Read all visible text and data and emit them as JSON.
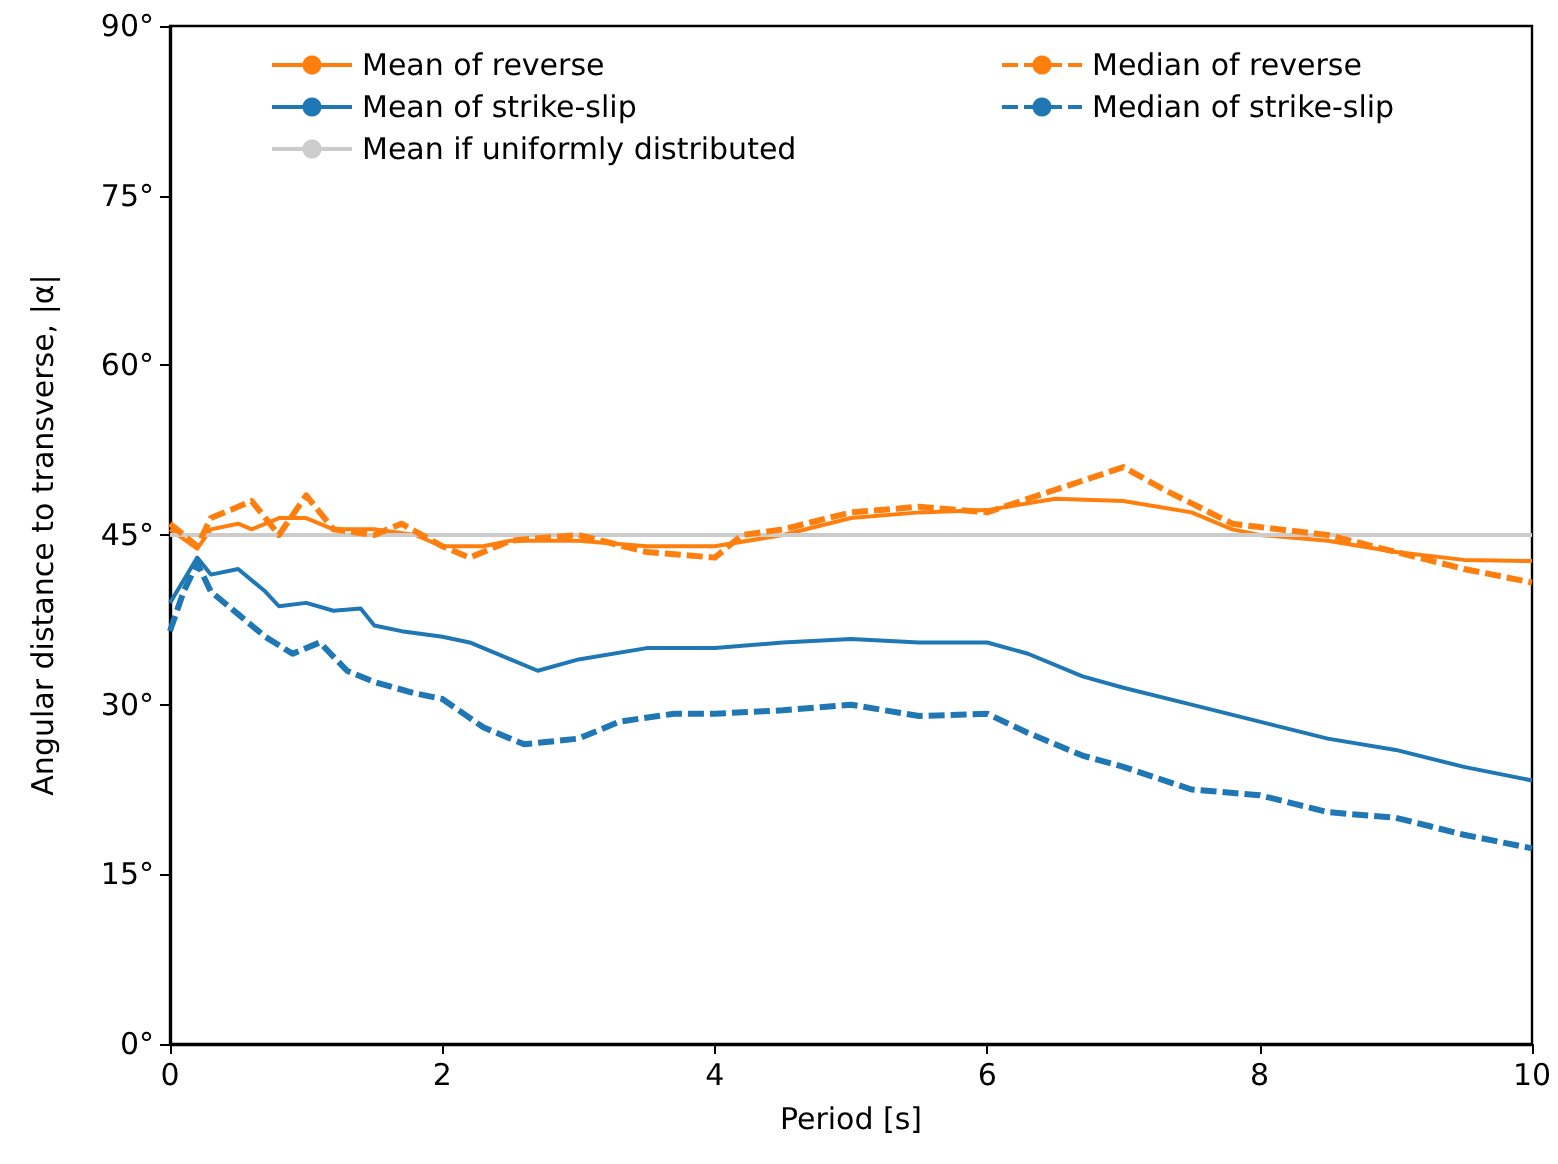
{
  "chart_data": {
    "type": "line",
    "xlabel": "Period [s]",
    "ylabel": "Angular distance to transverse, |α|",
    "xlim": [
      0,
      10
    ],
    "xticks": [
      0,
      2,
      4,
      6,
      8,
      10
    ],
    "ylim": [
      0,
      90
    ],
    "yticks": [
      {
        "value": 0,
        "label": "0°"
      },
      {
        "value": 15,
        "label": "15°"
      },
      {
        "value": 30,
        "label": "30°"
      },
      {
        "value": 45,
        "label": "45°"
      },
      {
        "value": 60,
        "label": "60°"
      },
      {
        "value": 75,
        "label": "75°"
      },
      {
        "value": 90,
        "label": "90°"
      }
    ],
    "grid": false,
    "legend": "top",
    "marker": "none",
    "series": [
      {
        "name": "Mean of reverse",
        "color": "#ff7f0e",
        "line_style": "solid",
        "x": [
          0,
          0.2,
          0.3,
          0.5,
          0.6,
          0.8,
          1.0,
          1.2,
          1.5,
          1.8,
          2.0,
          2.3,
          2.5,
          3.0,
          3.5,
          4.0,
          4.5,
          5.0,
          5.5,
          6.0,
          6.5,
          7.0,
          7.5,
          7.8,
          8.0,
          8.5,
          9.0,
          9.5,
          10
        ],
        "values": [
          45.5,
          43.8,
          45.5,
          46,
          45.5,
          46.5,
          46.5,
          45.5,
          45.5,
          45,
          44,
          44,
          44.5,
          44.5,
          44,
          44,
          45,
          46.5,
          47,
          47.2,
          48.2,
          48,
          47,
          45.5,
          45,
          44.5,
          43.5,
          42.8,
          42.7
        ]
      },
      {
        "name": "Mean of strike-slip",
        "color": "#1f77b4",
        "line_style": "solid",
        "x": [
          0,
          0.1,
          0.2,
          0.3,
          0.5,
          0.7,
          0.8,
          1.0,
          1.2,
          1.4,
          1.5,
          1.7,
          2.0,
          2.2,
          2.5,
          2.7,
          3.0,
          3.5,
          4.0,
          4.5,
          5.0,
          5.5,
          6.0,
          6.3,
          6.7,
          7.0,
          7.5,
          8.0,
          8.5,
          9.0,
          9.5,
          10
        ],
        "values": [
          39,
          41,
          43,
          41.5,
          42,
          40,
          38.7,
          39,
          38.3,
          38.5,
          37,
          36.5,
          36,
          35.5,
          34,
          33,
          34,
          35,
          35,
          35.5,
          35.8,
          35.5,
          35.5,
          34.5,
          32.5,
          31.5,
          30,
          28.5,
          27,
          26,
          24.5,
          23.3
        ]
      },
      {
        "name": "Mean if uniformly distributed",
        "color": "#cccccc",
        "line_style": "solid",
        "x": [
          0,
          10
        ],
        "values": [
          45,
          45
        ]
      },
      {
        "name": "Median of reverse",
        "color": "#ff7f0e",
        "line_style": "dashed",
        "x": [
          0,
          0.2,
          0.3,
          0.5,
          0.6,
          0.8,
          1.0,
          1.2,
          1.5,
          1.7,
          2.0,
          2.2,
          2.5,
          3.0,
          3.5,
          4.0,
          4.2,
          4.5,
          5.0,
          5.5,
          6.0,
          6.5,
          7.0,
          7.3,
          7.8,
          8.0,
          8.5,
          9.0,
          9.5,
          10
        ],
        "values": [
          46,
          44,
          46.5,
          47.5,
          48,
          45,
          48.5,
          45.5,
          45,
          46,
          44,
          43,
          44.5,
          45,
          43.5,
          43,
          45,
          45.5,
          47,
          47.5,
          47,
          49,
          51,
          49,
          46,
          45.7,
          45,
          43.5,
          42,
          40.8
        ]
      },
      {
        "name": "Median of strike-slip",
        "color": "#1f77b4",
        "line_style": "dashed",
        "x": [
          0,
          0.1,
          0.2,
          0.3,
          0.5,
          0.7,
          0.9,
          1.1,
          1.3,
          1.5,
          1.8,
          2.0,
          2.3,
          2.6,
          3.0,
          3.3,
          3.7,
          4.0,
          4.5,
          5.0,
          5.5,
          6.0,
          6.3,
          6.7,
          7.0,
          7.5,
          8.0,
          8.5,
          9.0,
          9.5,
          10
        ],
        "values": [
          36.5,
          40,
          42.5,
          40,
          38,
          36,
          34.5,
          35.5,
          33,
          32,
          31,
          30.5,
          28,
          26.5,
          27,
          28.5,
          29.2,
          29.2,
          29.5,
          30,
          29,
          29.2,
          27.5,
          25.5,
          24.5,
          22.5,
          22,
          20.5,
          20,
          18.5,
          17.3
        ]
      }
    ]
  }
}
